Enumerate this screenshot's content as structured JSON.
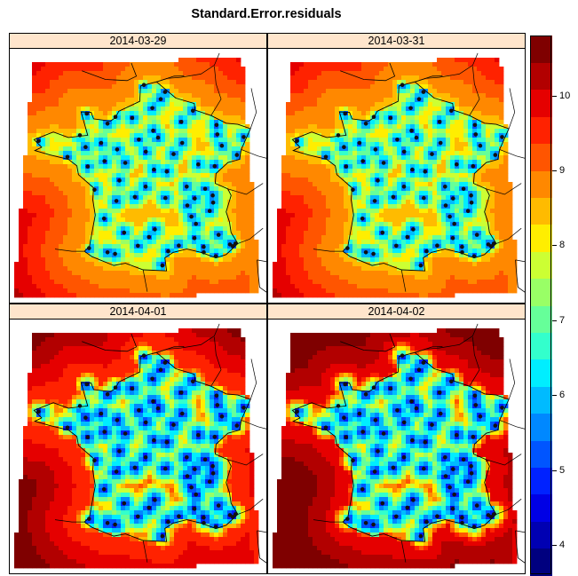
{
  "title": "Standard.Error.residuals",
  "panels": [
    {
      "date": "2014-03-29",
      "interior_level": 7.8,
      "island_level": 6.6,
      "station_level": 5.0
    },
    {
      "date": "2014-03-31",
      "interior_level": 7.8,
      "island_level": 6.6,
      "station_level": 5.0
    },
    {
      "date": "2014-04-01",
      "interior_level": 8.6,
      "island_level": 8.0,
      "station_level": 4.4
    },
    {
      "date": "2014-04-02",
      "interior_level": 9.0,
      "island_level": 8.4,
      "station_level": 4.4
    }
  ],
  "colorbar": {
    "min": 3.6,
    "max": 10.8,
    "ticks": [
      "4",
      "5",
      "6",
      "7",
      "8",
      "9",
      "10"
    ],
    "colors": [
      "#00007f",
      "#0000b2",
      "#0000e5",
      "#0022ff",
      "#0055ff",
      "#0088ff",
      "#00bbff",
      "#00eeff",
      "#33ffcc",
      "#66ff99",
      "#99ff66",
      "#ccff33",
      "#ffee00",
      "#ffbb00",
      "#ff8800",
      "#ff5500",
      "#ff2200",
      "#e50000",
      "#b20000",
      "#7f0000"
    ]
  },
  "stations": [
    [
      2.35,
      48.86
    ],
    [
      1.44,
      43.6
    ],
    [
      5.37,
      43.3
    ],
    [
      4.83,
      45.76
    ],
    [
      -1.55,
      47.22
    ],
    [
      7.75,
      48.57
    ],
    [
      -0.58,
      44.84
    ],
    [
      3.06,
      50.63
    ],
    [
      -1.68,
      48.11
    ],
    [
      1.1,
      49.44
    ],
    [
      0.69,
      47.39
    ],
    [
      1.91,
      47.9
    ],
    [
      5.04,
      47.32
    ],
    [
      6.18,
      48.69
    ],
    [
      6.02,
      47.24
    ],
    [
      3.08,
      45.78
    ],
    [
      1.26,
      45.83
    ],
    [
      0.34,
      46.58
    ],
    [
      -0.55,
      47.47
    ],
    [
      0.2,
      48.0
    ],
    [
      2.3,
      49.89
    ],
    [
      4.03,
      49.26
    ],
    [
      4.08,
      48.3
    ],
    [
      3.88,
      43.61
    ],
    [
      7.26,
      43.7
    ],
    [
      5.93,
      45.57
    ],
    [
      5.72,
      45.19
    ],
    [
      4.39,
      45.44
    ],
    [
      2.45,
      44.35
    ],
    [
      -0.37,
      43.3
    ],
    [
      -1.47,
      43.49
    ],
    [
      2.9,
      42.7
    ],
    [
      6.93,
      43.66
    ],
    [
      4.81,
      43.95
    ],
    [
      -4.48,
      48.39
    ],
    [
      -2.76,
      47.66
    ],
    [
      -0.37,
      49.18
    ],
    [
      -1.61,
      49.64
    ],
    [
      2.4,
      47.08
    ],
    [
      3.16,
      46.99
    ],
    [
      6.13,
      49.12
    ],
    [
      7.34,
      47.75
    ],
    [
      5.45,
      46.2
    ],
    [
      2.1,
      44.0
    ],
    [
      0.62,
      44.2
    ],
    [
      -1.15,
      46.16
    ],
    [
      0.16,
      45.65
    ],
    [
      1.5,
      48.45
    ],
    [
      2.8,
      50.3
    ],
    [
      4.72,
      49.77
    ],
    [
      6.45,
      48.17
    ],
    [
      5.36,
      43.55
    ],
    [
      4.63,
      44.93
    ],
    [
      6.08,
      43.12
    ],
    [
      1.9,
      46.3
    ],
    [
      3.57,
      47.79
    ],
    [
      2.64,
      48.54
    ],
    [
      0.1,
      49.49
    ],
    [
      -2.02,
      48.65
    ],
    [
      1.8,
      50.95
    ],
    [
      4.35,
      46.3
    ],
    [
      5.9,
      45.9
    ],
    [
      7.1,
      43.58
    ],
    [
      6.25,
      44.1
    ],
    [
      0.08,
      43.23
    ],
    [
      3.25,
      43.35
    ],
    [
      4.9,
      44.6
    ],
    [
      -0.75,
      48.3
    ]
  ]
}
